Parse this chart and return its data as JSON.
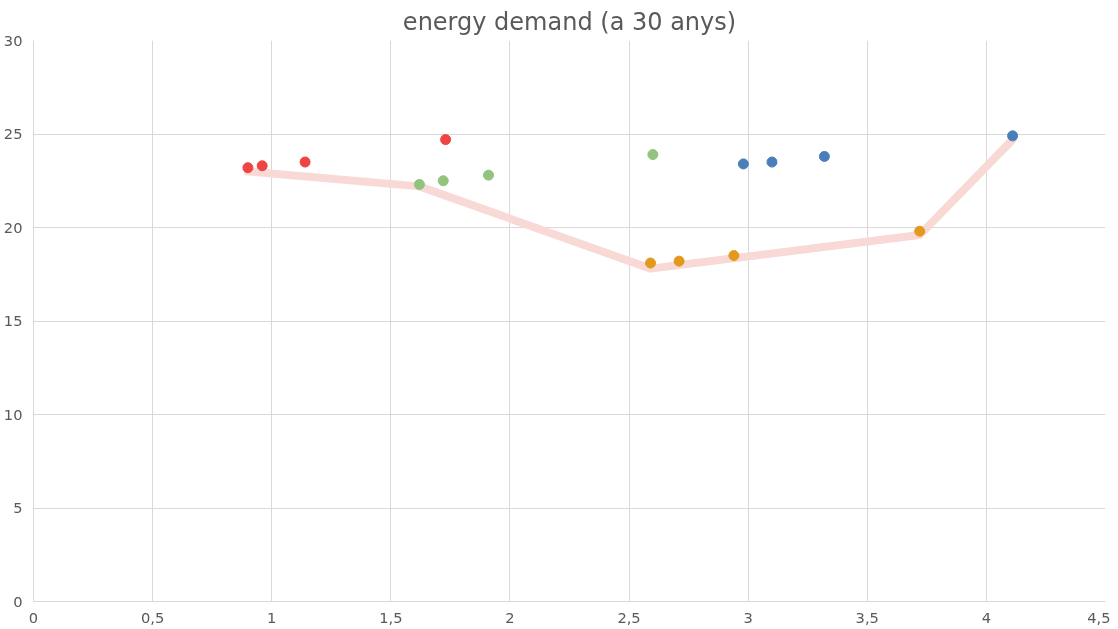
{
  "chart_data": {
    "type": "scatter",
    "title": "energy demand (a 30 anys)",
    "marker": "circle",
    "grid": true,
    "xlim": [
      0,
      4.5
    ],
    "ylim": [
      0,
      30
    ],
    "xticks": [
      0,
      {
        "value": 0.5,
        "label": "0,5"
      },
      1,
      {
        "value": 1.5,
        "label": "1,5"
      },
      2,
      {
        "value": 2.5,
        "label": "2,5"
      },
      3,
      {
        "value": 3.5,
        "label": "3,5"
      },
      4,
      {
        "value": 4.5,
        "label": "4,5"
      }
    ],
    "yticks": [
      0,
      5,
      10,
      15,
      20,
      25,
      30
    ],
    "series": [
      {
        "type": "line",
        "marker": "none",
        "color": "#f9d9d6",
        "x": [
          0.9,
          1.62,
          2.59,
          3.72,
          4.11
        ],
        "values": [
          23.0,
          22.2,
          17.8,
          19.6,
          24.7
        ]
      },
      {
        "color": "#ee4444",
        "x": [
          0.9,
          0.96,
          1.14,
          1.73
        ],
        "values": [
          23.2,
          23.3,
          23.5,
          24.7
        ]
      },
      {
        "color": "#93c47d",
        "x": [
          1.62,
          1.72,
          1.91,
          2.6
        ],
        "values": [
          22.3,
          22.5,
          22.8,
          23.9
        ]
      },
      {
        "color": "#e39a1c",
        "x": [
          2.59,
          2.71,
          2.94,
          3.72
        ],
        "values": [
          18.1,
          18.2,
          18.5,
          19.8
        ]
      },
      {
        "color": "#4a7ebb",
        "x": [
          2.98,
          3.1,
          3.32,
          4.11
        ],
        "values": [
          23.4,
          23.5,
          23.8,
          24.9
        ]
      }
    ]
  }
}
